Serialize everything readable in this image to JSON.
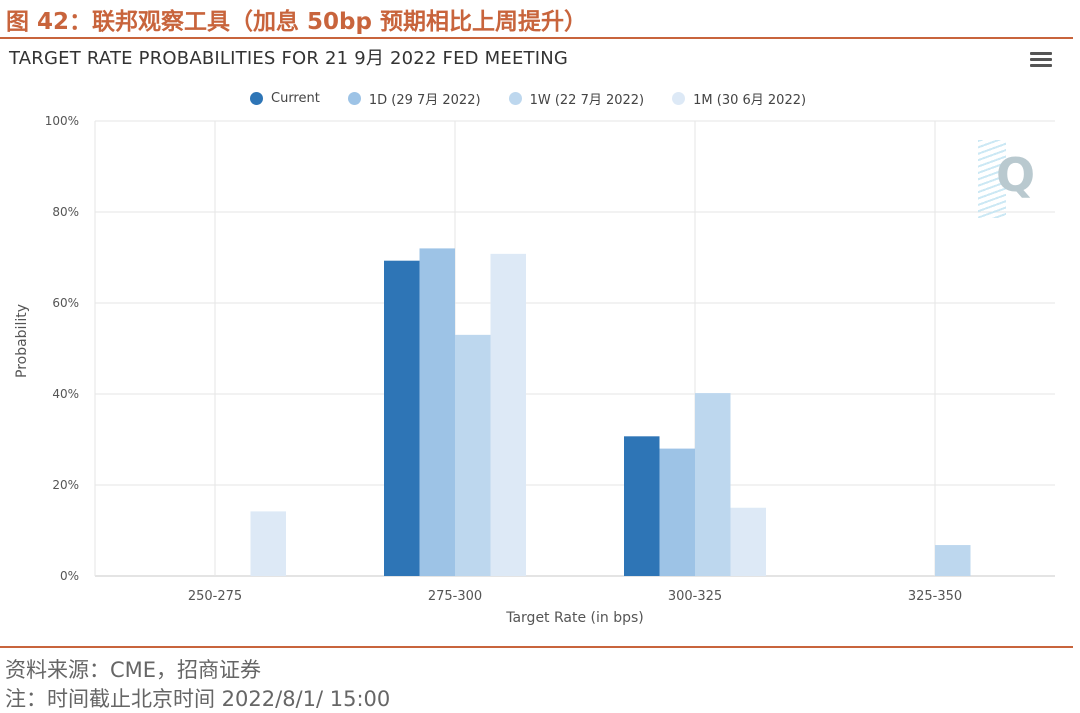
{
  "figure": {
    "header": "图 42：联邦观察工具（加息 50bp 预期相比上周提升）",
    "source": "资料来源：CME，招商证券",
    "note": "注：时间截止北京时间 2022/8/1/ 15:00"
  },
  "toolbar": {
    "menu_icon": "hamburger-menu-icon"
  },
  "chart_data": {
    "type": "bar",
    "title": "TARGET RATE PROBABILITIES FOR 21 9月 2022 FED MEETING",
    "xlabel": "Target Rate (in bps)",
    "ylabel": "Probability",
    "categories": [
      "250-275",
      "275-300",
      "300-325",
      "325-350"
    ],
    "ylim": [
      0,
      100
    ],
    "yticks": [
      "0%",
      "20%",
      "40%",
      "60%",
      "80%",
      "100%"
    ],
    "grid": true,
    "legend_position": "top-center",
    "series": [
      {
        "name": "Current",
        "color": "#2e75b6",
        "values": [
          0,
          69.3,
          30.7,
          0
        ]
      },
      {
        "name": "1D (29 7月 2022)",
        "color": "#9dc3e6",
        "values": [
          0,
          72.0,
          28.0,
          0
        ]
      },
      {
        "name": "1W (22 7月 2022)",
        "color": "#bdd7ee",
        "values": [
          0,
          53.0,
          40.2,
          6.8
        ]
      },
      {
        "name": "1M (30 6月 2022)",
        "color": "#dde9f6",
        "values": [
          14.2,
          70.8,
          15.0,
          0
        ]
      }
    ]
  }
}
